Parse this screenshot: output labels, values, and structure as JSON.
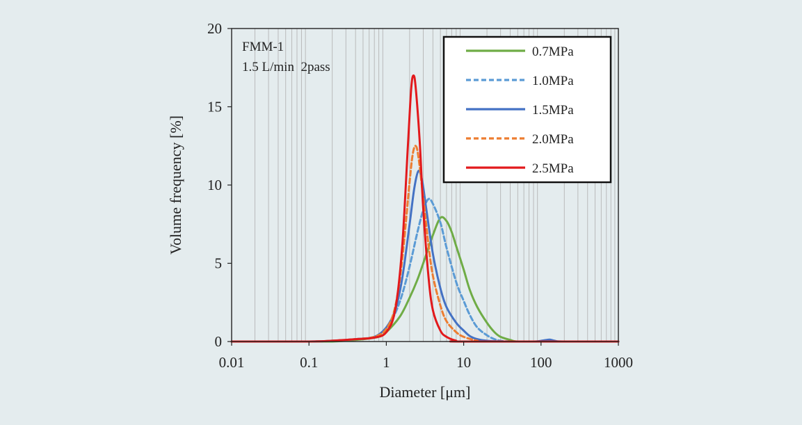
{
  "chart_data": {
    "type": "line",
    "xscale": "log",
    "xlim": [
      0.01,
      1000
    ],
    "ylim": [
      0,
      20
    ],
    "xticks": [
      "0.01",
      "0.1",
      "1",
      "10",
      "100",
      "1000"
    ],
    "yticks": [
      "0",
      "5",
      "10",
      "15",
      "20"
    ],
    "xlabel": "Diameter [μm]",
    "ylabel": "Volume frequency [%]",
    "grid": "vertical minor log grid",
    "legend_position": "top-right",
    "annotations": [
      "FMM-1",
      "1.5 L/min  2pass"
    ],
    "series": [
      {
        "name": "0.7MPa",
        "color": "#6fac46",
        "dash": "solid",
        "points": [
          [
            0.01,
            0
          ],
          [
            0.1,
            0
          ],
          [
            0.2,
            0
          ],
          [
            0.3,
            0.05
          ],
          [
            0.5,
            0.15
          ],
          [
            0.8,
            0.3
          ],
          [
            1,
            0.6
          ],
          [
            1.5,
            1.6
          ],
          [
            2,
            2.8
          ],
          [
            2.5,
            3.9
          ],
          [
            3,
            5.0
          ],
          [
            4,
            6.8
          ],
          [
            5,
            7.9
          ],
          [
            6,
            7.7
          ],
          [
            7,
            7.0
          ],
          [
            8,
            6.1
          ],
          [
            10,
            4.6
          ],
          [
            12,
            3.3
          ],
          [
            15,
            2.2
          ],
          [
            20,
            1.2
          ],
          [
            25,
            0.6
          ],
          [
            30,
            0.3
          ],
          [
            40,
            0.1
          ],
          [
            50,
            0
          ],
          [
            100,
            0
          ],
          [
            1000,
            0
          ]
        ]
      },
      {
        "name": "1.0MPa",
        "color": "#5b9bd5",
        "dash": "dashed",
        "points": [
          [
            0.01,
            0
          ],
          [
            0.1,
            0
          ],
          [
            0.2,
            0.05
          ],
          [
            0.4,
            0.15
          ],
          [
            0.7,
            0.3
          ],
          [
            1,
            0.8
          ],
          [
            1.3,
            1.8
          ],
          [
            1.6,
            3.0
          ],
          [
            2,
            4.8
          ],
          [
            2.5,
            6.9
          ],
          [
            3,
            8.4
          ],
          [
            3.5,
            9.1
          ],
          [
            4,
            8.8
          ],
          [
            5,
            7.6
          ],
          [
            6,
            6.0
          ],
          [
            8,
            3.8
          ],
          [
            10,
            2.6
          ],
          [
            12,
            1.7
          ],
          [
            15,
            0.9
          ],
          [
            20,
            0.4
          ],
          [
            25,
            0.15
          ],
          [
            30,
            0.05
          ],
          [
            40,
            0
          ],
          [
            100,
            0
          ],
          [
            1000,
            0
          ]
        ]
      },
      {
        "name": "1.5MPa",
        "color": "#4472c4",
        "dash": "solid",
        "points": [
          [
            0.01,
            0
          ],
          [
            0.1,
            0
          ],
          [
            0.2,
            0.05
          ],
          [
            0.4,
            0.15
          ],
          [
            0.7,
            0.3
          ],
          [
            1,
            0.9
          ],
          [
            1.3,
            2.0
          ],
          [
            1.6,
            4.0
          ],
          [
            2,
            7.5
          ],
          [
            2.3,
            9.8
          ],
          [
            2.6,
            10.9
          ],
          [
            2.9,
            10.3
          ],
          [
            3.3,
            8.4
          ],
          [
            4,
            5.6
          ],
          [
            5,
            3.4
          ],
          [
            6,
            2.2
          ],
          [
            8,
            1.2
          ],
          [
            10,
            0.7
          ],
          [
            12,
            0.35
          ],
          [
            15,
            0.15
          ],
          [
            20,
            0.05
          ],
          [
            30,
            0
          ],
          [
            80,
            0
          ],
          [
            110,
            0.08
          ],
          [
            130,
            0.12
          ],
          [
            150,
            0.05
          ],
          [
            200,
            0
          ],
          [
            1000,
            0
          ]
        ]
      },
      {
        "name": "2.0MPa",
        "color": "#ed7d31",
        "dash": "dashed",
        "points": [
          [
            0.01,
            0
          ],
          [
            0.1,
            0
          ],
          [
            0.2,
            0.05
          ],
          [
            0.4,
            0.15
          ],
          [
            0.7,
            0.3
          ],
          [
            1,
            0.8
          ],
          [
            1.3,
            2.2
          ],
          [
            1.6,
            5.2
          ],
          [
            2,
            10.2
          ],
          [
            2.2,
            12.0
          ],
          [
            2.4,
            12.5
          ],
          [
            2.6,
            11.8
          ],
          [
            3,
            9.2
          ],
          [
            3.5,
            6.2
          ],
          [
            4,
            4.2
          ],
          [
            5,
            2.3
          ],
          [
            6,
            1.3
          ],
          [
            8,
            0.6
          ],
          [
            10,
            0.3
          ],
          [
            15,
            0.05
          ],
          [
            20,
            0
          ],
          [
            1000,
            0
          ]
        ]
      },
      {
        "name": "2.5MPa",
        "color": "#e2191c",
        "dash": "solid",
        "points": [
          [
            0.01,
            0
          ],
          [
            0.1,
            0
          ],
          [
            0.2,
            0.05
          ],
          [
            0.4,
            0.15
          ],
          [
            0.7,
            0.25
          ],
          [
            1,
            0.6
          ],
          [
            1.3,
            2.0
          ],
          [
            1.6,
            6.0
          ],
          [
            1.9,
            12.5
          ],
          [
            2.1,
            16.2
          ],
          [
            2.25,
            17.0
          ],
          [
            2.4,
            16.2
          ],
          [
            2.7,
            12.8
          ],
          [
            3,
            8.5
          ],
          [
            3.5,
            4.2
          ],
          [
            4,
            2.0
          ],
          [
            5,
            0.7
          ],
          [
            6,
            0.3
          ],
          [
            8,
            0.05
          ],
          [
            10,
            0
          ],
          [
            1000,
            0
          ]
        ]
      }
    ]
  }
}
